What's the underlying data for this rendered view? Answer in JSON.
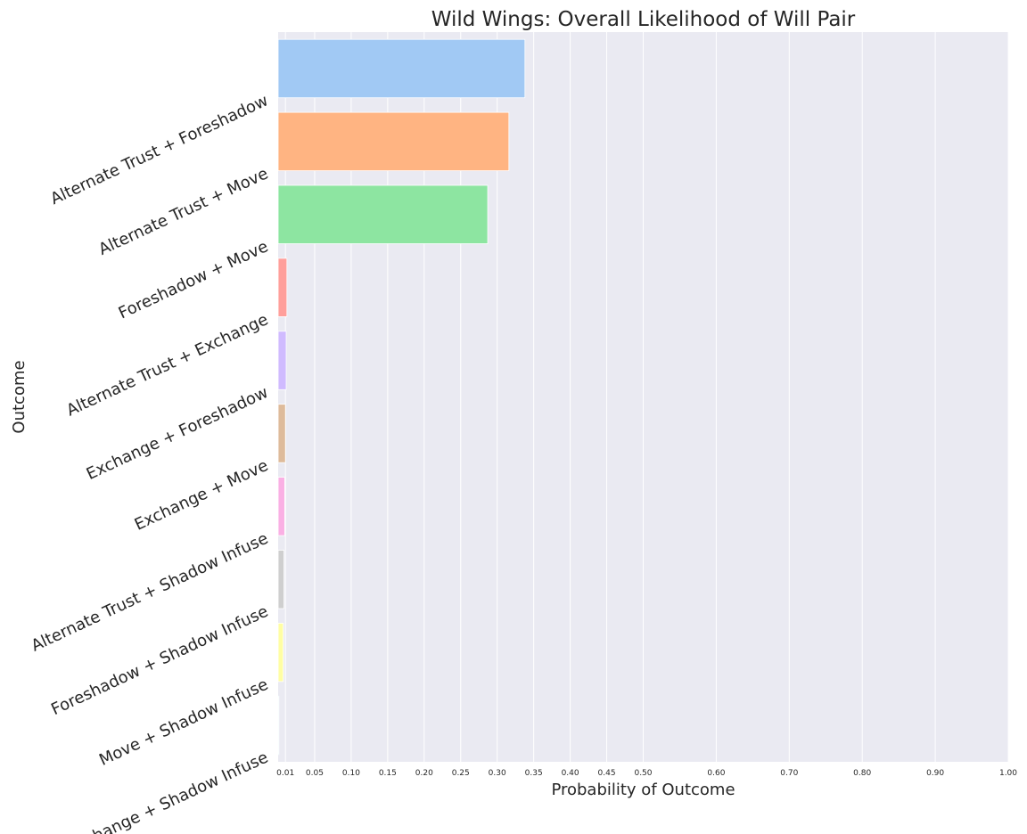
{
  "chart_data": {
    "type": "bar",
    "orientation": "horizontal",
    "title": "Wild Wings: Overall Likelihood of Will Pair",
    "xlabel": "Probability of Outcome",
    "ylabel": "Outcome",
    "xlim": [
      0,
      1.0
    ],
    "x_ticks": [
      0.01,
      0.05,
      0.1,
      0.15,
      0.2,
      0.25,
      0.3,
      0.35,
      0.4,
      0.45,
      0.5,
      0.6,
      0.7,
      0.8,
      0.9,
      1.0
    ],
    "x_tick_labels": [
      "0.01",
      "0.05",
      "0.10",
      "0.15",
      "0.20",
      "0.25",
      "0.30",
      "0.35",
      "0.40",
      "0.45",
      "0.50",
      "0.60",
      "0.70",
      "0.80",
      "0.90",
      "1.00"
    ],
    "grid": true,
    "categories": [
      "Alternate Trust + Foreshadow",
      "Alternate Trust + Move",
      "Foreshadow + Move",
      "Alternate Trust + Exchange",
      "Exchange + Foreshadow",
      "Exchange + Move",
      "Alternate Trust + Shadow Infuse",
      "Foreshadow + Shadow Infuse",
      "Move + Shadow Infuse",
      "Exchange + Shadow Infuse"
    ],
    "values": [
      0.338,
      0.316,
      0.287,
      0.012,
      0.011,
      0.01,
      0.009,
      0.008,
      0.007,
      0.001
    ],
    "colors": [
      "#a1c9f4",
      "#ffb482",
      "#8de5a1",
      "#ff9f9b",
      "#d0bbff",
      "#debb9b",
      "#fab0e4",
      "#cfcfcf",
      "#fffea3",
      "#b9f2f0"
    ],
    "background": "#eaeaf2",
    "gridline_color": "#ffffff"
  }
}
